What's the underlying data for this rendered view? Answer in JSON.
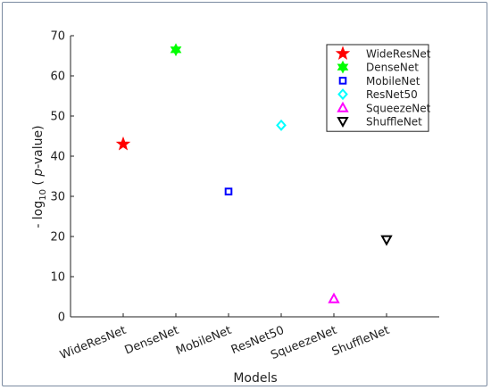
{
  "chart_data": {
    "type": "scatter",
    "xlabel": "Models",
    "ylabel": {
      "prefix": "- log",
      "subscript": "10",
      "open": " ( ",
      "italic": "p",
      "suffix": "-value)"
    },
    "ylim": [
      0,
      70
    ],
    "yticks": [
      0,
      10,
      20,
      30,
      40,
      50,
      60,
      70
    ],
    "categories": [
      "WideResNet",
      "DenseNet",
      "MobileNet",
      "ResNet50",
      "SqueezeNet",
      "ShuffleNet"
    ],
    "series": [
      {
        "name": "WideResNet",
        "x": "WideResNet",
        "y": 43,
        "marker": "pentagram",
        "color": "#ff0000"
      },
      {
        "name": "DenseNet",
        "x": "DenseNet",
        "y": 66.5,
        "marker": "hexagram",
        "color": "#00ff00"
      },
      {
        "name": "MobileNet",
        "x": "MobileNet",
        "y": 31.2,
        "marker": "square",
        "color": "#0000ff"
      },
      {
        "name": "ResNet50",
        "x": "ResNet50",
        "y": 47.7,
        "marker": "diamond",
        "color": "#00ffff"
      },
      {
        "name": "SqueezeNet",
        "x": "SqueezeNet",
        "y": 4.5,
        "marker": "triangle-up",
        "color": "#ff00ff"
      },
      {
        "name": "ShuffleNet",
        "x": "ShuffleNet",
        "y": 19.2,
        "marker": "triangle-down",
        "color": "#000000"
      }
    ],
    "grid": false,
    "legend_position": "top-right"
  }
}
